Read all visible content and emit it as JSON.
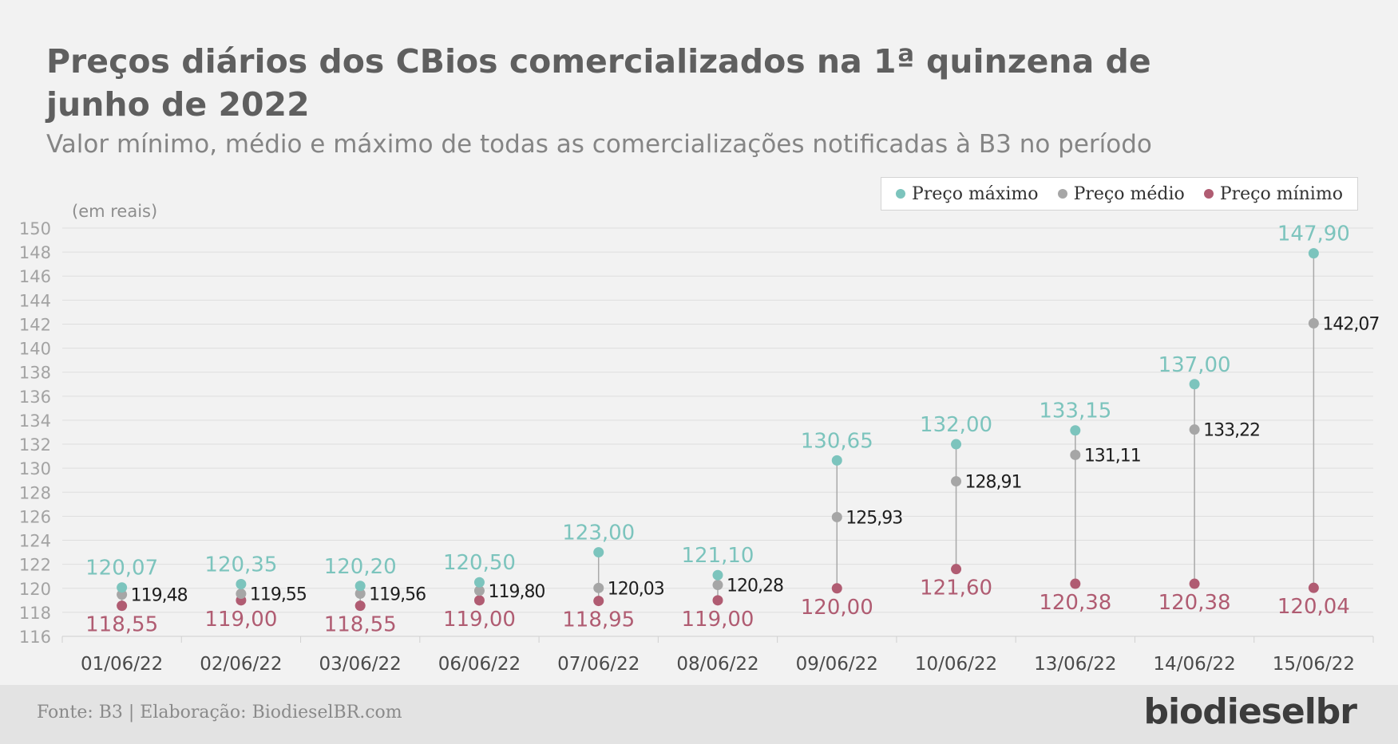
{
  "header": {
    "title": "Preços diários dos CBios comercializados na 1ª quinzena de junho de 2022",
    "subtitle": "Valor mínimo, médio e máximo de todas as comercializações notificadas à B3 no período"
  },
  "footer": {
    "source": "Fonte: B3 | Elaboração: BiodieselBR.com",
    "brand": "biodieselbr"
  },
  "chart_data": {
    "type": "scatter",
    "title": "Preços diários dos CBios comercializados na 1ª quinzena de junho de 2022",
    "subtitle": "Valor mínimo, médio e máximo de todas as comercializações notificadas à B3 no período",
    "unit_label": "(em reais)",
    "categories": [
      "01/06/22",
      "02/06/22",
      "03/06/22",
      "06/06/22",
      "07/06/22",
      "08/06/22",
      "09/06/22",
      "10/06/22",
      "13/06/22",
      "14/06/22",
      "15/06/22"
    ],
    "series": [
      {
        "name": "Preço máximo",
        "color": "#7cc4bd",
        "values": [
          120.07,
          120.35,
          120.2,
          120.5,
          123.0,
          121.1,
          130.65,
          132.0,
          133.15,
          137.0,
          147.9
        ],
        "labels": [
          "120,07",
          "120,35",
          "120,20",
          "120,50",
          "123,00",
          "121,10",
          "130,65",
          "132,00",
          "133,15",
          "137,00",
          "147,90"
        ]
      },
      {
        "name": "Preço médio",
        "color": "#a6a6a6",
        "values": [
          119.48,
          119.55,
          119.56,
          119.8,
          120.03,
          120.28,
          125.93,
          128.91,
          131.11,
          133.22,
          142.07
        ],
        "labels": [
          "119,48",
          "119,55",
          "119,56",
          "119,80",
          "120,03",
          "120,28",
          "125,93",
          "128,91",
          "131,11",
          "133,22",
          "142,07"
        ]
      },
      {
        "name": "Preço mínimo",
        "color": "#b05c72",
        "values": [
          118.55,
          119.0,
          118.55,
          119.0,
          118.95,
          119.0,
          120.0,
          121.6,
          120.38,
          120.38,
          120.04
        ],
        "labels": [
          "118,55",
          "119,00",
          "118,55",
          "119,00",
          "118,95",
          "119,00",
          "120,00",
          "121,60",
          "120,38",
          "120,38",
          "120,04"
        ]
      }
    ],
    "yticks": [
      "116",
      "118",
      "120",
      "122",
      "124",
      "126",
      "128",
      "130",
      "132",
      "134",
      "136",
      "138",
      "140",
      "142",
      "144",
      "146",
      "148",
      "150"
    ],
    "ylim": [
      116,
      150
    ],
    "grid": true,
    "legend_position": "top-right"
  }
}
